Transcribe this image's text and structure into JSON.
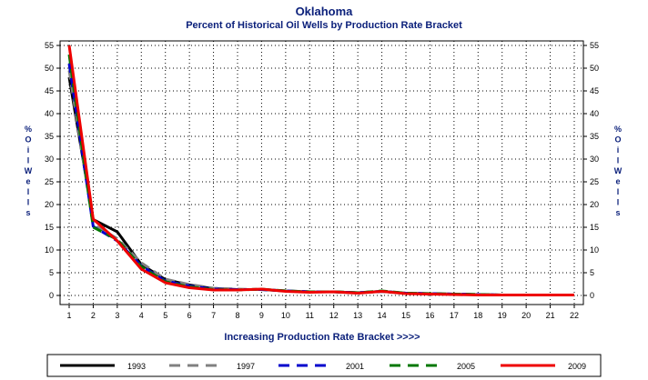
{
  "chart_data": {
    "type": "line",
    "title": "Oklahoma",
    "subtitle": "Percent of Historical Oil Wells by Production Rate Bracket",
    "xlabel": "Increasing Production Rate Bracket >>>>",
    "ylabel": "% O i l W e l l s",
    "ylabel_chars": [
      "%",
      "O",
      "i",
      "l",
      "W",
      "e",
      "l",
      "l",
      "s"
    ],
    "x": [
      1,
      2,
      3,
      4,
      5,
      6,
      7,
      8,
      9,
      10,
      11,
      12,
      13,
      14,
      15,
      16,
      17,
      18,
      19,
      20,
      21,
      22
    ],
    "yticks": [
      0,
      5,
      10,
      15,
      20,
      25,
      30,
      35,
      40,
      45,
      50,
      55
    ],
    "ylim": [
      0,
      56
    ],
    "grid": true,
    "legend_position": "bottom",
    "series": [
      {
        "name": "1993",
        "color": "#000000",
        "dash": "solid",
        "values": [
          48.0,
          16.7,
          14.0,
          6.8,
          3.5,
          2.3,
          1.5,
          1.3,
          1.3,
          1.0,
          0.8,
          0.8,
          0.6,
          0.9,
          0.5,
          0.4,
          0.3,
          0.2,
          0.1,
          0.1,
          0.1,
          0.1
        ]
      },
      {
        "name": "1997",
        "color": "#808080",
        "dash": "dashed",
        "values": [
          49.5,
          15.6,
          12.5,
          7.2,
          3.6,
          2.4,
          1.6,
          1.4,
          1.3,
          1.0,
          0.8,
          0.8,
          0.6,
          0.9,
          0.5,
          0.4,
          0.3,
          0.2,
          0.1,
          0.1,
          0.1,
          0.1
        ]
      },
      {
        "name": "2001",
        "color": "#0000cc",
        "dash": "dashed",
        "values": [
          51.0,
          15.2,
          12.0,
          6.5,
          3.2,
          2.1,
          1.4,
          1.3,
          1.3,
          1.0,
          0.8,
          0.8,
          0.6,
          0.9,
          0.5,
          0.4,
          0.3,
          0.2,
          0.1,
          0.1,
          0.1,
          0.1
        ]
      },
      {
        "name": "2005",
        "color": "#007700",
        "dash": "dashed",
        "values": [
          53.0,
          15.0,
          12.3,
          6.3,
          3.0,
          1.9,
          1.3,
          1.2,
          1.4,
          1.0,
          0.8,
          0.8,
          0.6,
          1.0,
          0.5,
          0.4,
          0.3,
          0.2,
          0.1,
          0.1,
          0.1,
          0.1
        ]
      },
      {
        "name": "2009",
        "color": "#ee0000",
        "dash": "solid",
        "values": [
          55.0,
          16.8,
          12.0,
          5.8,
          2.8,
          1.7,
          1.2,
          1.2,
          1.4,
          0.9,
          0.7,
          0.8,
          0.5,
          0.9,
          0.4,
          0.3,
          0.2,
          0.1,
          0.1,
          0.1,
          0.1,
          0.1
        ]
      }
    ]
  }
}
